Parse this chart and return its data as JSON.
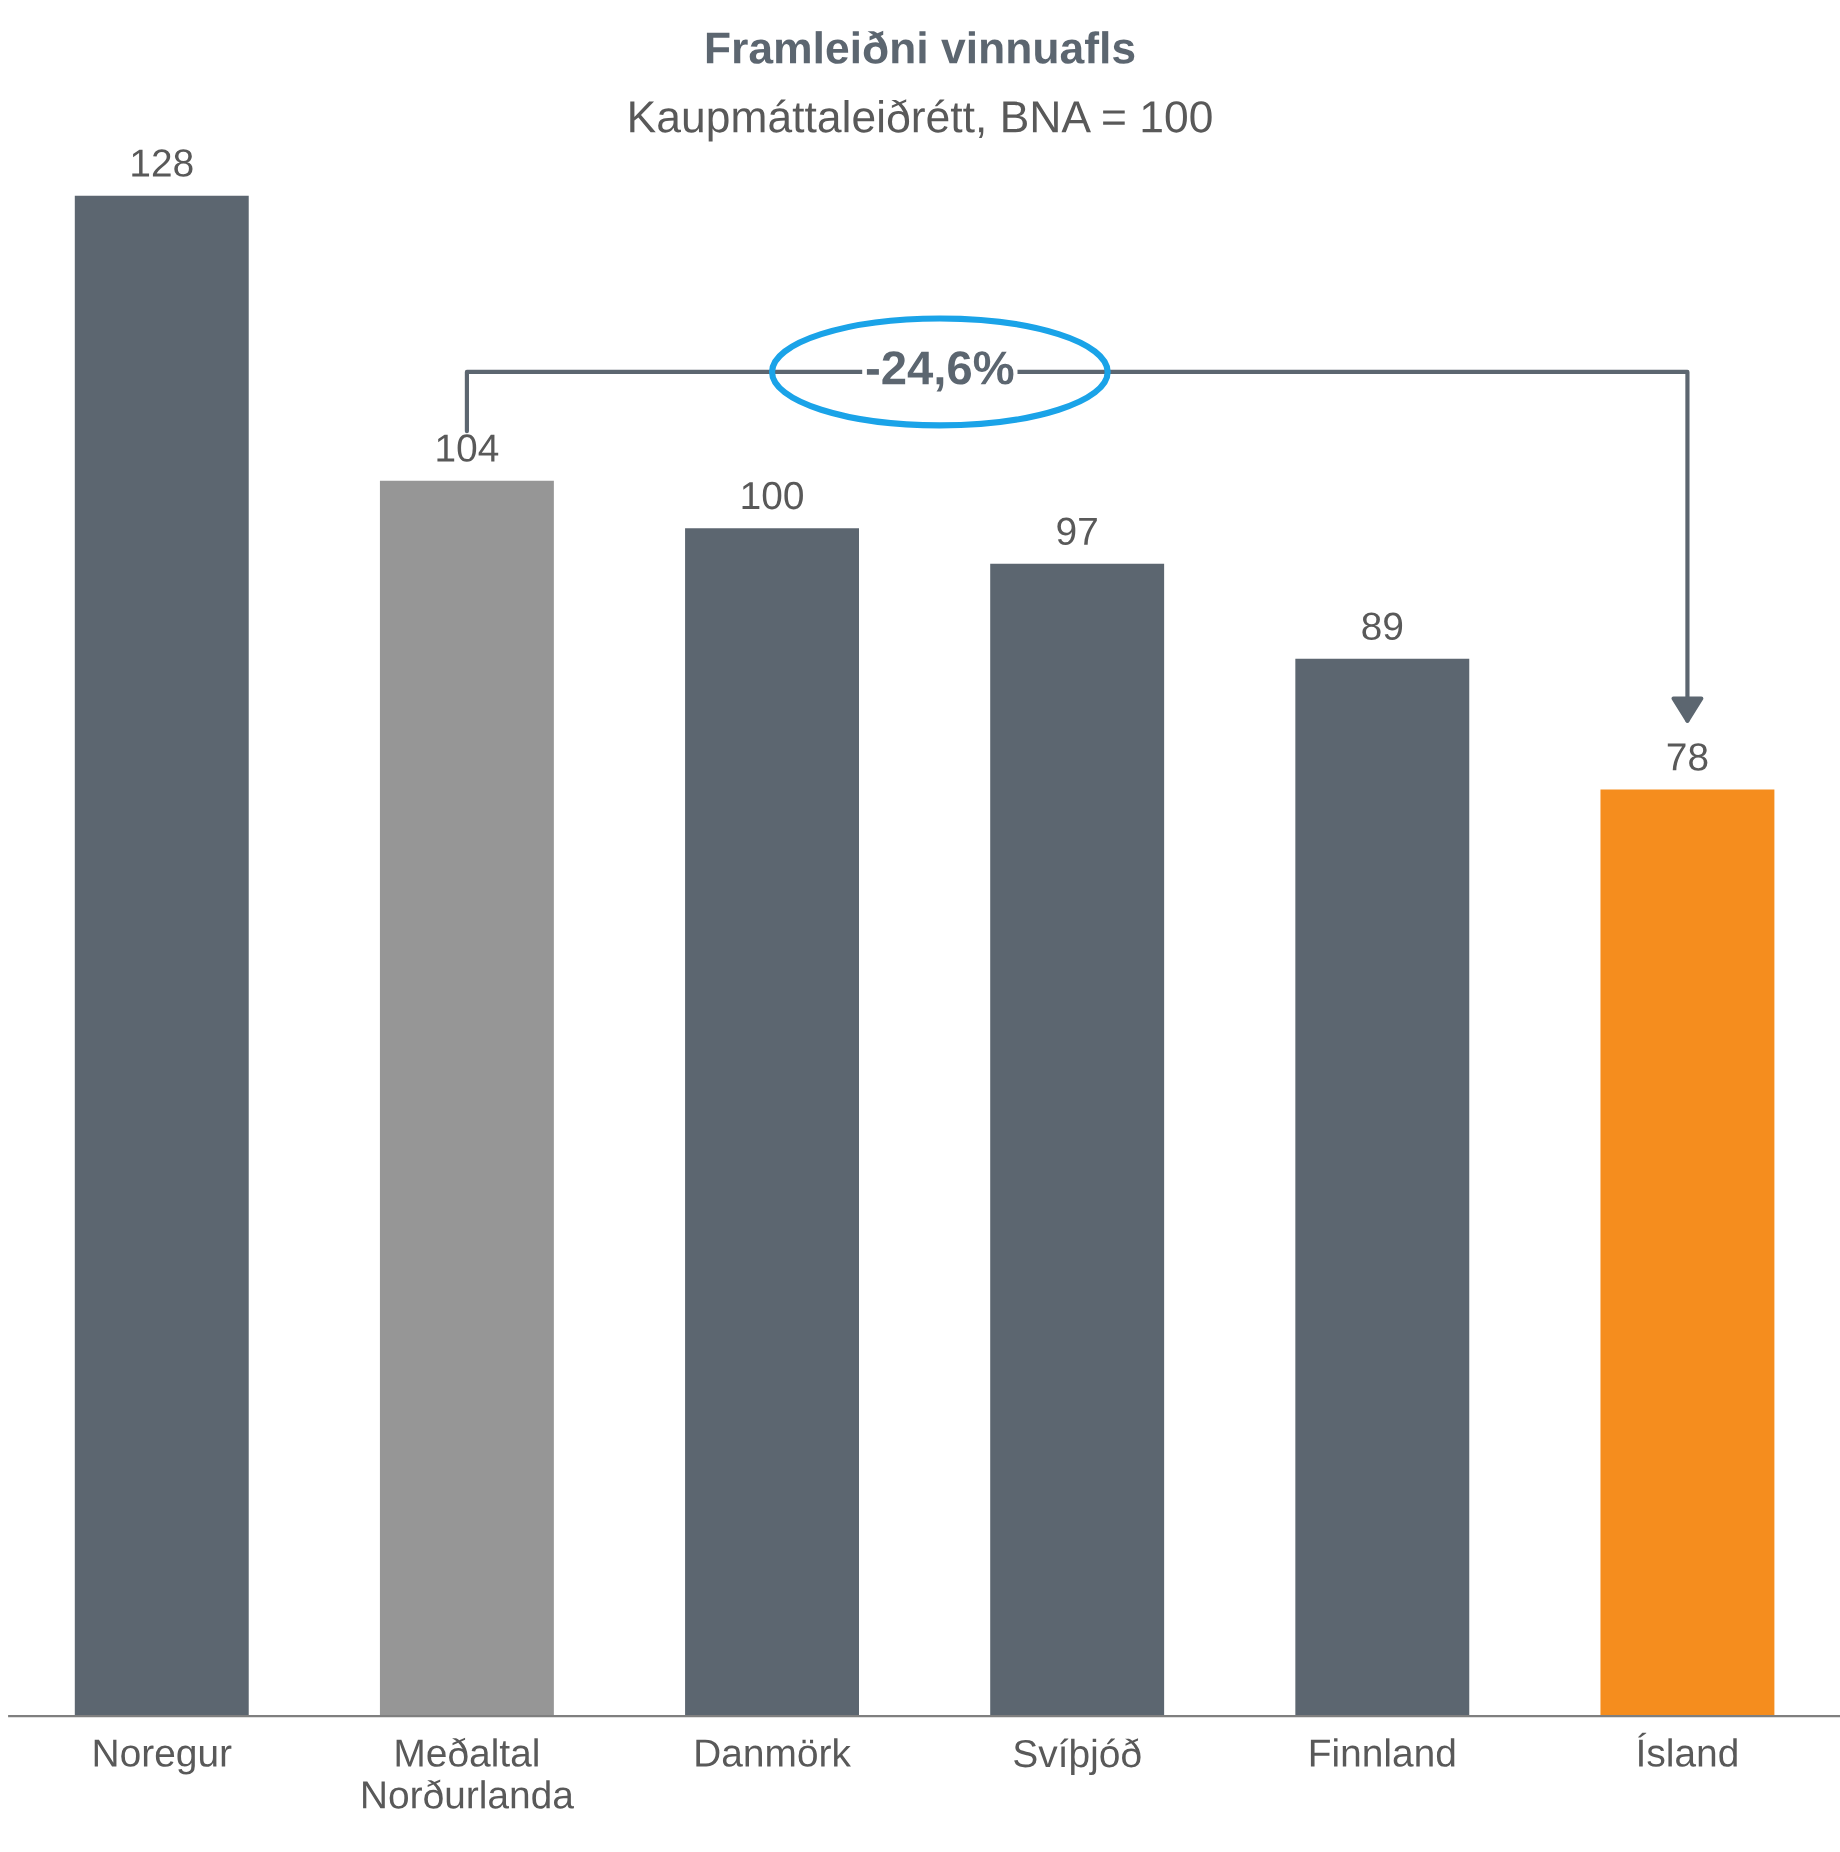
{
  "chart_data": {
    "type": "bar",
    "title": "Framleiðni vinnuafls",
    "subtitle": "Kaupmáttaleiðrétt, BNA = 100",
    "categories": [
      "Noregur",
      "Meðaltal\nNorðurlanda",
      "Danmörk",
      "Svíþjóð",
      "Finnland",
      "Ísland"
    ],
    "values": [
      128,
      104,
      100,
      97,
      89,
      78
    ],
    "colors": [
      "#5c6670",
      "#969696",
      "#5c6670",
      "#5c6670",
      "#5c6670",
      "#f58d1e"
    ],
    "data_labels": true,
    "grid": false,
    "legend": false,
    "annotations": [
      "-24,6%"
    ]
  }
}
